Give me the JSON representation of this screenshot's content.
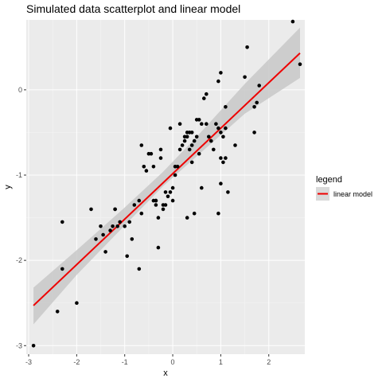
{
  "chart_data": {
    "type": "scatter",
    "title": "Simulated data scatterplot and linear model",
    "xlabel": "x",
    "ylabel": "y",
    "xlim": [
      -3.05,
      2.75
    ],
    "ylim": [
      -3.1,
      0.82
    ],
    "x_ticks": [
      -3,
      -2,
      -1,
      0,
      1,
      2
    ],
    "x_tick_labels": [
      "-3",
      "-2",
      "-1",
      "0",
      "1",
      "2"
    ],
    "y_ticks": [
      -3,
      -2,
      -1,
      0
    ],
    "y_tick_labels": [
      "-3",
      "-2",
      "-1",
      "0"
    ],
    "grid": true,
    "legend": {
      "title": "legend",
      "position": "right",
      "entries": [
        {
          "label": "linear model",
          "color": "#e41a1c"
        }
      ]
    },
    "colors": {
      "panel": "#ebebeb",
      "grid_major": "#ffffff",
      "points": "#000000",
      "fit_line": "#ee0000",
      "ribbon": "#c8c8c8"
    },
    "series": [
      {
        "kind": "points",
        "x": [
          -2.9,
          -2.3,
          -2.3,
          -2.4,
          -2.0,
          -1.7,
          -1.6,
          -1.5,
          -1.45,
          -1.4,
          -1.3,
          -1.25,
          -1.2,
          -1.2,
          -1.15,
          -1.1,
          -1.0,
          -0.95,
          -0.9,
          -0.85,
          -0.8,
          -0.7,
          -0.7,
          -0.65,
          -0.6,
          -0.55,
          -0.5,
          -0.45,
          -0.4,
          -0.4,
          -0.35,
          -0.35,
          -0.3,
          -0.3,
          -0.25,
          -0.25,
          -0.2,
          -0.2,
          -0.15,
          -0.1,
          -0.05,
          -0.05,
          0.0,
          0.0,
          0.05,
          0.05,
          0.1,
          0.15,
          0.15,
          0.2,
          0.25,
          0.25,
          0.3,
          0.3,
          0.35,
          0.35,
          0.4,
          0.4,
          0.45,
          0.45,
          0.5,
          0.5,
          0.55,
          0.6,
          0.6,
          0.65,
          0.7,
          0.7,
          0.75,
          0.8,
          0.85,
          0.9,
          0.95,
          1.0,
          1.0,
          1.05,
          1.05,
          1.1,
          1.1,
          1.15,
          1.3,
          1.5,
          1.55,
          1.7,
          1.75,
          1.8,
          2.5,
          2.65,
          0.95,
          1.0,
          0.55,
          0.4,
          -0.15,
          -0.65,
          -0.35,
          0.3,
          1.0,
          0.95,
          1.1,
          1.7
        ],
        "y": [
          -3.0,
          -1.55,
          -2.1,
          -2.6,
          -2.5,
          -1.4,
          -1.75,
          -1.6,
          -1.7,
          -1.9,
          -1.65,
          -1.6,
          -1.4,
          -1.4,
          -1.6,
          -1.55,
          -1.6,
          -1.95,
          -1.55,
          -1.75,
          -1.35,
          -1.3,
          -2.1,
          -1.45,
          -0.9,
          -0.95,
          -0.75,
          -0.75,
          -0.9,
          -1.3,
          -1.3,
          -1.35,
          -1.5,
          -1.85,
          -0.7,
          -0.8,
          -1.4,
          -1.35,
          -1.2,
          -1.25,
          -1.2,
          -0.45,
          -1.15,
          -1.3,
          -0.9,
          -1.0,
          -0.9,
          -0.7,
          -0.4,
          -0.65,
          -0.6,
          -0.55,
          -0.5,
          -0.55,
          -0.5,
          -0.7,
          -0.85,
          -0.5,
          -1.45,
          -0.6,
          -0.55,
          -0.35,
          -0.75,
          -0.4,
          -1.15,
          -0.1,
          -0.05,
          -0.4,
          -0.55,
          -0.6,
          -0.7,
          -0.4,
          -0.45,
          -0.5,
          -0.8,
          -0.55,
          -0.85,
          -0.45,
          -0.2,
          -1.2,
          -0.65,
          0.15,
          0.5,
          -0.2,
          -0.15,
          0.05,
          0.8,
          0.3,
          0.1,
          0.2,
          -0.35,
          -0.65,
          -1.35,
          -0.65,
          -1.3,
          -1.5,
          -1.1,
          -1.45,
          -0.8,
          -0.5
        ]
      },
      {
        "kind": "fit_line",
        "name": "linear model",
        "x": [
          -2.9,
          2.65
        ],
        "y": [
          -2.53,
          0.43
        ]
      },
      {
        "kind": "confidence_band",
        "x": [
          -2.9,
          -2.0,
          -1.0,
          -0.2,
          0.5,
          1.5,
          2.65
        ],
        "lower": [
          -2.75,
          -2.17,
          -1.59,
          -1.13,
          -0.78,
          -0.28,
          0.14
        ],
        "upper": [
          -2.32,
          -1.88,
          -1.38,
          -0.96,
          -0.55,
          0.07,
          0.73
        ]
      }
    ]
  }
}
